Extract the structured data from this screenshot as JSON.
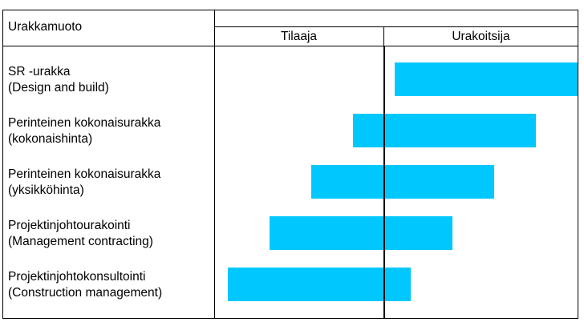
{
  "header": {
    "title": "Urakkamuoto",
    "left_label": "Tilaaja",
    "right_label": "Urakoitsija"
  },
  "bar_color": "#00c8ff",
  "rows": [
    {
      "line1": "SR -urakka",
      "line2": "(Design and build)",
      "start": 0.495,
      "end": 1.0
    },
    {
      "line1": "Perinteinen kokonaisurakka",
      "line2": "(kokonaishinta)",
      "start": 0.38,
      "end": 0.885
    },
    {
      "line1": "Perinteinen kokonaisurakka",
      "line2": "(yksikköhinta)",
      "start": 0.265,
      "end": 0.77
    },
    {
      "line1": "Projektinjohtourakointi",
      "line2": "(Management contracting)",
      "start": 0.15,
      "end": 0.655
    },
    {
      "line1": "Projektinjohtokonsultointi",
      "line2": "(Construction management)",
      "start": 0.035,
      "end": 0.54
    }
  ]
}
